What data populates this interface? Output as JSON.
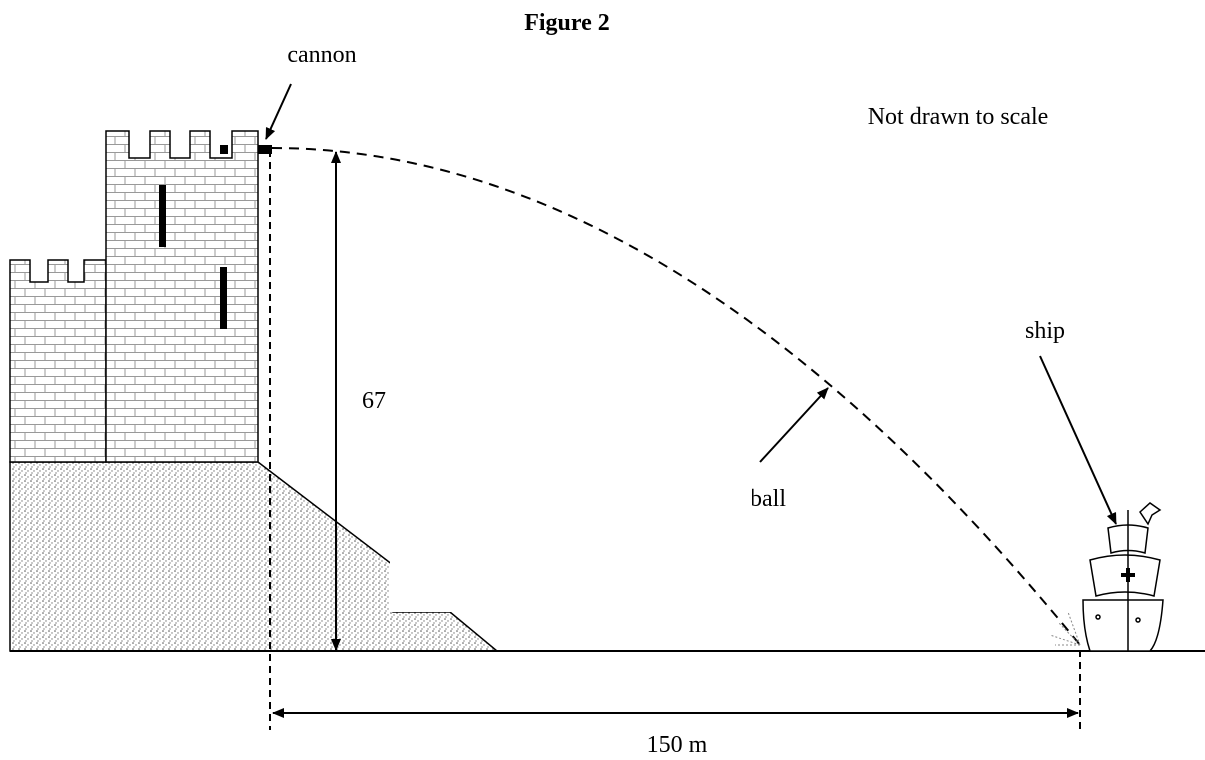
{
  "title": "Figure 2",
  "labels": {
    "cannon": "cannon",
    "note": "Not drawn to scale",
    "ship": "ship",
    "ball": "ball",
    "height": "67 m",
    "distance": "150 m"
  }
}
